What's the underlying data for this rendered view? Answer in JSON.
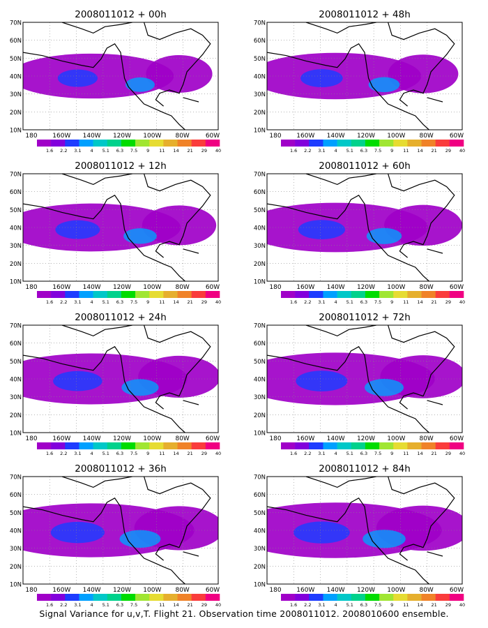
{
  "figure": {
    "caption": "Signal Variance for u,v,T. Flight 21. Observation time 2008011012. 2008010600 ensemble.",
    "lat_labels": [
      "70N",
      "60N",
      "50N",
      "40N",
      "30N",
      "20N",
      "10N"
    ],
    "lon_labels": [
      "180",
      "160W",
      "140W",
      "120W",
      "100W",
      "80W",
      "60W"
    ],
    "colorbar_labels": [
      "1.6",
      "2.2",
      "3.1",
      "4",
      "5.1",
      "6.3",
      "7.5",
      "9",
      "11",
      "14",
      "21",
      "29",
      "40"
    ],
    "colorbar_colors": [
      "#a000c8",
      "#8200dc",
      "#1e3cff",
      "#00a0ff",
      "#00c8c8",
      "#00d28c",
      "#00dc00",
      "#a0e632",
      "#e6dc32",
      "#e6af2d",
      "#f08228",
      "#fa3c3c",
      "#f00082"
    ]
  },
  "panels": [
    {
      "title": "2008011012 + 00h"
    },
    {
      "title": "2008011012 + 48h"
    },
    {
      "title": "2008011012 + 12h"
    },
    {
      "title": "2008011012 + 60h"
    },
    {
      "title": "2008011012 + 24h"
    },
    {
      "title": "2008011012 + 72h"
    },
    {
      "title": "2008011012 + 36h"
    },
    {
      "title": "2008011012 + 84h"
    }
  ]
}
